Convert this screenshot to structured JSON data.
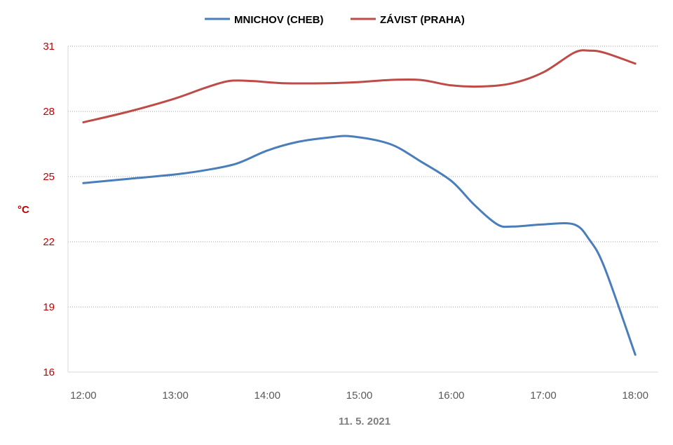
{
  "chart_data": {
    "type": "line",
    "xlabel": "11. 5. 2021",
    "ylabel": "°C",
    "x_ticks": [
      "12:00",
      "13:00",
      "14:00",
      "15:00",
      "16:00",
      "17:00",
      "18:00"
    ],
    "y_ticks": [
      "16",
      "19",
      "22",
      "25",
      "28",
      "31"
    ],
    "ylim": [
      16,
      31
    ],
    "xlim": [
      "11:50",
      "18:15"
    ],
    "grid": "horizontal dotted",
    "legend_position": "top-center",
    "colors": {
      "tick_text": "#c00000",
      "grid": "#a0a0a0",
      "axis": "#d9d9d9"
    },
    "series": [
      {
        "name": "MNICHOV (CHEB)",
        "color": "#4a7ebb",
        "x": [
          "12:00",
          "12:30",
          "13:00",
          "13:20",
          "13:40",
          "14:00",
          "14:20",
          "14:40",
          "14:55",
          "15:20",
          "15:40",
          "16:00",
          "16:15",
          "16:30",
          "16:40",
          "17:00",
          "17:20",
          "17:30",
          "17:40",
          "18:00"
        ],
        "y": [
          24.7,
          24.9,
          25.1,
          25.3,
          25.6,
          26.2,
          26.6,
          26.8,
          26.85,
          26.5,
          25.7,
          24.8,
          23.7,
          22.8,
          22.7,
          22.8,
          22.8,
          22.1,
          20.8,
          16.8
        ]
      },
      {
        "name": "ZÁVIST (PRAHA)",
        "color": "#be4b48",
        "x": [
          "12:00",
          "12:30",
          "13:00",
          "13:20",
          "13:35",
          "13:50",
          "14:10",
          "14:40",
          "15:00",
          "15:20",
          "15:40",
          "16:00",
          "16:20",
          "16:40",
          "17:00",
          "17:20",
          "17:30",
          "17:40",
          "18:00"
        ],
        "y": [
          27.5,
          28.0,
          28.6,
          29.1,
          29.4,
          29.4,
          29.3,
          29.3,
          29.35,
          29.45,
          29.45,
          29.2,
          29.15,
          29.3,
          29.8,
          30.7,
          30.8,
          30.7,
          30.2
        ]
      }
    ]
  }
}
